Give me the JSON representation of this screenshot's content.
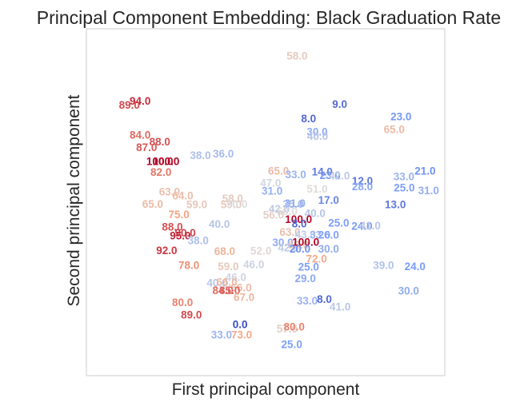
{
  "chart_data": {
    "type": "scatter",
    "title": "Principal Component Embedding: Black Graduation Rate",
    "xlabel": "First principal component",
    "ylabel": "Second principal component",
    "grid": false,
    "legend": "none",
    "colormap": "coolwarm",
    "color_range": [
      0,
      100
    ],
    "points": [
      {
        "x": 0.588,
        "y": 0.922,
        "label": "58.0",
        "value": 58
      },
      {
        "x": 0.15,
        "y": 0.792,
        "label": "94.0",
        "value": 94
      },
      {
        "x": 0.12,
        "y": 0.78,
        "label": "89.0",
        "value": 89
      },
      {
        "x": 0.707,
        "y": 0.782,
        "label": "9.0",
        "value": 9
      },
      {
        "x": 0.62,
        "y": 0.741,
        "label": "8.0",
        "value": 8
      },
      {
        "x": 0.878,
        "y": 0.747,
        "label": "23.0",
        "value": 23
      },
      {
        "x": 0.859,
        "y": 0.71,
        "label": "65.0",
        "value": 65
      },
      {
        "x": 0.644,
        "y": 0.703,
        "label": "30.0",
        "value": 30
      },
      {
        "x": 0.645,
        "y": 0.69,
        "label": "40.0",
        "value": 40
      },
      {
        "x": 0.15,
        "y": 0.693,
        "label": "84.0",
        "value": 84
      },
      {
        "x": 0.205,
        "y": 0.674,
        "label": "88.0",
        "value": 88
      },
      {
        "x": 0.168,
        "y": 0.658,
        "label": "87.0",
        "value": 87
      },
      {
        "x": 0.382,
        "y": 0.639,
        "label": "36.0",
        "value": 36
      },
      {
        "x": 0.318,
        "y": 0.635,
        "label": "38.0",
        "value": 38
      },
      {
        "x": 0.205,
        "y": 0.618,
        "label": "100.0",
        "value": 100
      },
      {
        "x": 0.222,
        "y": 0.618,
        "label": "100.0",
        "value": 100
      },
      {
        "x": 0.208,
        "y": 0.586,
        "label": "82.0",
        "value": 82
      },
      {
        "x": 0.536,
        "y": 0.59,
        "label": "65.0",
        "value": 65
      },
      {
        "x": 0.584,
        "y": 0.58,
        "label": "33.0",
        "value": 33
      },
      {
        "x": 0.658,
        "y": 0.588,
        "label": "14.0",
        "value": 14
      },
      {
        "x": 0.68,
        "y": 0.577,
        "label": "23.0",
        "value": 23
      },
      {
        "x": 0.706,
        "y": 0.576,
        "label": "42.0",
        "value": 42
      },
      {
        "x": 0.945,
        "y": 0.59,
        "label": "21.0",
        "value": 21
      },
      {
        "x": 0.886,
        "y": 0.574,
        "label": "33.0",
        "value": 33
      },
      {
        "x": 0.77,
        "y": 0.561,
        "label": "12.0",
        "value": 12
      },
      {
        "x": 0.77,
        "y": 0.545,
        "label": "28.0",
        "value": 28
      },
      {
        "x": 0.887,
        "y": 0.542,
        "label": "25.0",
        "value": 25
      },
      {
        "x": 0.955,
        "y": 0.533,
        "label": "31.0",
        "value": 31
      },
      {
        "x": 0.514,
        "y": 0.555,
        "label": "47.0",
        "value": 47
      },
      {
        "x": 0.644,
        "y": 0.538,
        "label": "51.0",
        "value": 51
      },
      {
        "x": 0.232,
        "y": 0.53,
        "label": "63.0",
        "value": 63
      },
      {
        "x": 0.269,
        "y": 0.519,
        "label": "64.0",
        "value": 64
      },
      {
        "x": 0.518,
        "y": 0.532,
        "label": "31.0",
        "value": 31
      },
      {
        "x": 0.676,
        "y": 0.506,
        "label": "17.0",
        "value": 17
      },
      {
        "x": 0.862,
        "y": 0.493,
        "label": "13.0",
        "value": 13
      },
      {
        "x": 0.185,
        "y": 0.494,
        "label": "65.0",
        "value": 65
      },
      {
        "x": 0.308,
        "y": 0.493,
        "label": "59.0",
        "value": 59
      },
      {
        "x": 0.408,
        "y": 0.51,
        "label": "58.0",
        "value": 58
      },
      {
        "x": 0.404,
        "y": 0.493,
        "label": "59.0",
        "value": 59
      },
      {
        "x": 0.42,
        "y": 0.494,
        "label": "50.0",
        "value": 50
      },
      {
        "x": 0.577,
        "y": 0.494,
        "label": "35.0",
        "value": 35
      },
      {
        "x": 0.582,
        "y": 0.497,
        "label": "31.0",
        "value": 31
      },
      {
        "x": 0.538,
        "y": 0.48,
        "label": "42.0",
        "value": 42
      },
      {
        "x": 0.56,
        "y": 0.474,
        "label": "50.0",
        "value": 50
      },
      {
        "x": 0.638,
        "y": 0.468,
        "label": "40.0",
        "value": 40
      },
      {
        "x": 0.522,
        "y": 0.463,
        "label": "56.0",
        "value": 56
      },
      {
        "x": 0.258,
        "y": 0.464,
        "label": "75.0",
        "value": 75
      },
      {
        "x": 0.592,
        "y": 0.451,
        "label": "100.0",
        "value": 100
      },
      {
        "x": 0.594,
        "y": 0.438,
        "label": "8.0",
        "value": 8
      },
      {
        "x": 0.704,
        "y": 0.44,
        "label": "25.0",
        "value": 25
      },
      {
        "x": 0.769,
        "y": 0.431,
        "label": "24.0",
        "value": 24
      },
      {
        "x": 0.792,
        "y": 0.432,
        "label": "41.0",
        "value": 41
      },
      {
        "x": 0.371,
        "y": 0.437,
        "label": "40.0",
        "value": 40
      },
      {
        "x": 0.24,
        "y": 0.428,
        "label": "88.0",
        "value": 88
      },
      {
        "x": 0.276,
        "y": 0.411,
        "label": "90.0",
        "value": 90
      },
      {
        "x": 0.262,
        "y": 0.403,
        "label": "95.0",
        "value": 95
      },
      {
        "x": 0.312,
        "y": 0.389,
        "label": "38.0",
        "value": 38
      },
      {
        "x": 0.568,
        "y": 0.414,
        "label": "63.0",
        "value": 63
      },
      {
        "x": 0.611,
        "y": 0.407,
        "label": "43.0",
        "value": 43
      },
      {
        "x": 0.652,
        "y": 0.405,
        "label": "33.0",
        "value": 33
      },
      {
        "x": 0.676,
        "y": 0.405,
        "label": "26.0",
        "value": 26
      },
      {
        "x": 0.548,
        "y": 0.384,
        "label": "30.0",
        "value": 30
      },
      {
        "x": 0.564,
        "y": 0.369,
        "label": "42.0",
        "value": 42
      },
      {
        "x": 0.592,
        "y": 0.377,
        "label": "59.0",
        "value": 59
      },
      {
        "x": 0.612,
        "y": 0.385,
        "label": "100.0",
        "value": 100
      },
      {
        "x": 0.596,
        "y": 0.365,
        "label": "20.0",
        "value": 20
      },
      {
        "x": 0.676,
        "y": 0.365,
        "label": "30.0",
        "value": 30
      },
      {
        "x": 0.224,
        "y": 0.361,
        "label": "92.0",
        "value": 92
      },
      {
        "x": 0.386,
        "y": 0.358,
        "label": "68.0",
        "value": 68
      },
      {
        "x": 0.487,
        "y": 0.359,
        "label": "52.0",
        "value": 52
      },
      {
        "x": 0.642,
        "y": 0.336,
        "label": "72.0",
        "value": 72
      },
      {
        "x": 0.829,
        "y": 0.318,
        "label": "39.0",
        "value": 39
      },
      {
        "x": 0.917,
        "y": 0.315,
        "label": "24.0",
        "value": 24
      },
      {
        "x": 0.286,
        "y": 0.318,
        "label": "78.0",
        "value": 78
      },
      {
        "x": 0.396,
        "y": 0.314,
        "label": "59.0",
        "value": 59
      },
      {
        "x": 0.467,
        "y": 0.32,
        "label": "46.0",
        "value": 46
      },
      {
        "x": 0.62,
        "y": 0.313,
        "label": "25.0",
        "value": 25
      },
      {
        "x": 0.611,
        "y": 0.28,
        "label": "29.0",
        "value": 29
      },
      {
        "x": 0.417,
        "y": 0.283,
        "label": "46.0",
        "value": 46
      },
      {
        "x": 0.365,
        "y": 0.267,
        "label": "40.0",
        "value": 40
      },
      {
        "x": 0.392,
        "y": 0.27,
        "label": "66.0",
        "value": 66
      },
      {
        "x": 0.432,
        "y": 0.254,
        "label": "66.0",
        "value": 66
      },
      {
        "x": 0.381,
        "y": 0.245,
        "label": "84.0",
        "value": 84
      },
      {
        "x": 0.4,
        "y": 0.245,
        "label": "85.0",
        "value": 85
      },
      {
        "x": 0.44,
        "y": 0.226,
        "label": "67.0",
        "value": 67
      },
      {
        "x": 0.899,
        "y": 0.244,
        "label": "30.0",
        "value": 30
      },
      {
        "x": 0.616,
        "y": 0.216,
        "label": "33.0",
        "value": 33
      },
      {
        "x": 0.664,
        "y": 0.22,
        "label": "8.0",
        "value": 8
      },
      {
        "x": 0.708,
        "y": 0.198,
        "label": "41.0",
        "value": 41
      },
      {
        "x": 0.268,
        "y": 0.211,
        "label": "80.0",
        "value": 80
      },
      {
        "x": 0.293,
        "y": 0.175,
        "label": "89.0",
        "value": 89
      },
      {
        "x": 0.429,
        "y": 0.148,
        "label": "0.0",
        "value": 0
      },
      {
        "x": 0.377,
        "y": 0.117,
        "label": "33.0",
        "value": 33
      },
      {
        "x": 0.433,
        "y": 0.117,
        "label": "73.0",
        "value": 73
      },
      {
        "x": 0.56,
        "y": 0.135,
        "label": "57.0",
        "value": 57
      },
      {
        "x": 0.58,
        "y": 0.14,
        "label": "80.0",
        "value": 80
      },
      {
        "x": 0.573,
        "y": 0.09,
        "label": "25.0",
        "value": 25
      }
    ]
  }
}
